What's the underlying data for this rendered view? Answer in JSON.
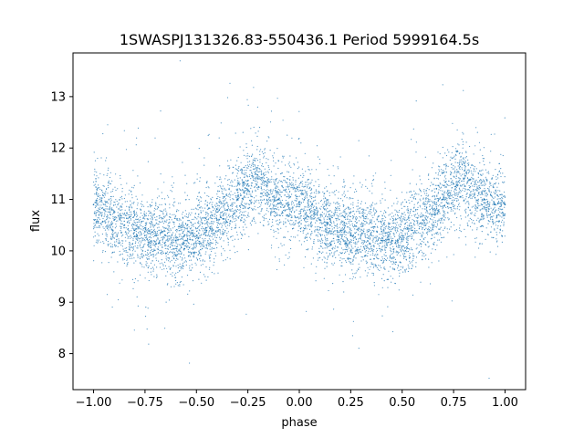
{
  "chart_data": {
    "type": "scatter",
    "title": "1SWASPJ131326.83-550436.1 Period 5999164.5s",
    "xlabel": "phase",
    "ylabel": "flux",
    "xlim": [
      -1.1,
      1.1
    ],
    "ylim": [
      7.3,
      13.85
    ],
    "xticks": [
      -1.0,
      -0.75,
      -0.5,
      -0.25,
      0.0,
      0.25,
      0.5,
      0.75,
      1.0
    ],
    "xtick_labels": [
      "−1.00",
      "−0.75",
      "−0.50",
      "−0.25",
      "0.00",
      "0.25",
      "0.50",
      "0.75",
      "1.00"
    ],
    "yticks": [
      8,
      9,
      10,
      11,
      12,
      13
    ],
    "ytick_labels": [
      "8",
      "9",
      "10",
      "11",
      "12",
      "13"
    ],
    "grid": false,
    "legend": "none",
    "point_color": "#1f77b4",
    "series": [
      {
        "x": [
          -1.0,
          -0.95,
          -0.9,
          -0.85,
          -0.8,
          -0.75,
          -0.7,
          -0.65,
          -0.6,
          -0.55,
          -0.5,
          -0.45,
          -0.4,
          -0.35,
          -0.3,
          -0.25,
          -0.2,
          -0.15,
          -0.1,
          -0.05,
          0.0,
          0.05,
          0.1,
          0.15,
          0.2,
          0.25,
          0.3,
          0.35,
          0.4,
          0.45,
          0.5,
          0.55,
          0.6,
          0.65,
          0.7,
          0.75,
          0.8,
          0.85,
          0.9,
          0.95,
          1.0
        ],
        "y": [
          10.9,
          10.8,
          10.6,
          10.5,
          10.4,
          10.3,
          10.3,
          10.3,
          10.2,
          10.2,
          10.3,
          10.4,
          10.6,
          10.8,
          11.0,
          11.3,
          11.4,
          11.1,
          11.0,
          10.9,
          10.9,
          10.8,
          10.6,
          10.5,
          10.4,
          10.3,
          10.3,
          10.3,
          10.2,
          10.2,
          10.3,
          10.4,
          10.6,
          10.8,
          11.0,
          11.3,
          11.4,
          11.1,
          11.0,
          10.9,
          10.9
        ]
      }
    ]
  }
}
